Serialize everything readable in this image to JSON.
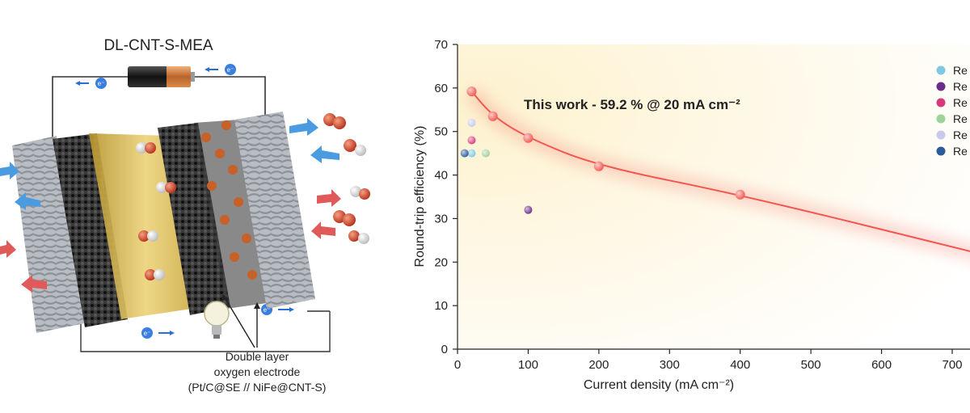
{
  "schematic": {
    "title": "DL-CNT-S-MEA",
    "electron_label": "e⁻",
    "callout_line1": "Double layer",
    "callout_line2": "oxygen electrode",
    "callout_line3": "(Pt/C@SE // NiFe@CNT-S)"
  },
  "colors": {
    "curve": "#f0574f",
    "grid_bg_top": "#fdf6d8",
    "membrane": "#d9b84a",
    "fiber": "#9a9ea6",
    "cnt": "#2b2b2b",
    "nife": "#c8602a"
  },
  "chart_data": {
    "type": "scatter",
    "xlabel": "Current density (mA cm⁻²)",
    "ylabel": "Round-trip efficiency (%)",
    "xlim": [
      0,
      750
    ],
    "ylim": [
      0,
      70
    ],
    "xticks": [
      0,
      100,
      200,
      300,
      400,
      500,
      600,
      700
    ],
    "yticks": [
      0,
      10,
      20,
      30,
      40,
      50,
      60,
      70
    ],
    "annotation": "This work - 59.2 % @ 20 mA cm⁻²",
    "series": [
      {
        "name": "This work",
        "color": "#f0574f",
        "points": [
          [
            20,
            59.2
          ],
          [
            50,
            53.5
          ],
          [
            100,
            48.5
          ],
          [
            200,
            42
          ],
          [
            400,
            35.5
          ],
          [
            750,
            21.5
          ]
        ]
      },
      {
        "name": "Re",
        "color": "#7ec8e3",
        "points": [
          [
            20,
            45
          ]
        ]
      },
      {
        "name": "Re",
        "color": "#6a2e8a",
        "points": [
          [
            100,
            32
          ]
        ]
      },
      {
        "name": "Re",
        "color": "#d63a7a",
        "points": [
          [
            20,
            48
          ]
        ]
      },
      {
        "name": "Re",
        "color": "#9fd19a",
        "points": [
          [
            40,
            45
          ]
        ]
      },
      {
        "name": "Re",
        "color": "#c9c9ee",
        "points": [
          [
            20,
            52
          ]
        ]
      },
      {
        "name": "Re",
        "color": "#2d5b9a",
        "points": [
          [
            10,
            45
          ]
        ]
      }
    ]
  }
}
